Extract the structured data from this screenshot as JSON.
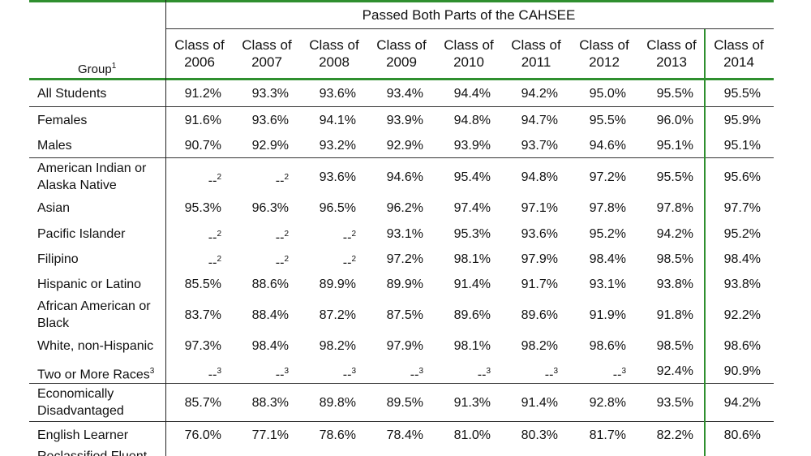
{
  "table": {
    "super_header": "Passed Both Parts of the CAHSEE",
    "group_header": "Group",
    "group_header_note": "1",
    "columns": [
      {
        "line1": "Class of",
        "line2": "2006"
      },
      {
        "line1": "Class of",
        "line2": "2007"
      },
      {
        "line1": "Class of",
        "line2": "2008"
      },
      {
        "line1": "Class of",
        "line2": "2009"
      },
      {
        "line1": "Class of",
        "line2": "2010"
      },
      {
        "line1": "Class of",
        "line2": "2011"
      },
      {
        "line1": "Class of",
        "line2": "2012"
      },
      {
        "line1": "Class of",
        "line2": "2013"
      },
      {
        "line1": "Class of",
        "line2": "2014"
      }
    ],
    "rows": [
      {
        "group": "All Students",
        "values": [
          "91.2%",
          "93.3%",
          "93.6%",
          "93.4%",
          "94.4%",
          "94.2%",
          "95.0%",
          "95.5%",
          "95.5%"
        ]
      },
      {
        "group": "Females",
        "values": [
          "91.6%",
          "93.6%",
          "94.1%",
          "93.9%",
          "94.8%",
          "94.7%",
          "95.5%",
          "96.0%",
          "95.9%"
        ]
      },
      {
        "group": "Males",
        "values": [
          "90.7%",
          "92.9%",
          "93.2%",
          "92.9%",
          "93.9%",
          "93.7%",
          "94.6%",
          "95.1%",
          "95.1%"
        ]
      },
      {
        "group": "American Indian or Alaska Native",
        "values": [
          "--2",
          "--2",
          "93.6%",
          "94.6%",
          "95.4%",
          "94.8%",
          "97.2%",
          "95.5%",
          "95.6%"
        ]
      },
      {
        "group": "Asian",
        "values": [
          "95.3%",
          "96.3%",
          "96.5%",
          "96.2%",
          "97.4%",
          "97.1%",
          "97.8%",
          "97.8%",
          "97.7%"
        ]
      },
      {
        "group": "Pacific Islander",
        "values": [
          "--2",
          "--2",
          "--2",
          "93.1%",
          "95.3%",
          "93.6%",
          "95.2%",
          "94.2%",
          "95.2%"
        ]
      },
      {
        "group": "Filipino",
        "values": [
          "--2",
          "--2",
          "--2",
          "97.2%",
          "98.1%",
          "97.9%",
          "98.4%",
          "98.5%",
          "98.4%"
        ]
      },
      {
        "group": "Hispanic or Latino",
        "values": [
          "85.5%",
          "88.6%",
          "89.9%",
          "89.9%",
          "91.4%",
          "91.7%",
          "93.1%",
          "93.8%",
          "93.8%"
        ]
      },
      {
        "group": "African American or Black",
        "values": [
          "83.7%",
          "88.4%",
          "87.2%",
          "87.5%",
          "89.6%",
          "89.6%",
          "91.9%",
          "91.8%",
          "92.2%"
        ]
      },
      {
        "group": "White, non-Hispanic",
        "values": [
          "97.3%",
          "98.4%",
          "98.2%",
          "97.9%",
          "98.1%",
          "98.2%",
          "98.6%",
          "98.5%",
          "98.6%"
        ]
      },
      {
        "group": "Two or More Races",
        "group_note": "3",
        "values": [
          "--3",
          "--3",
          "--3",
          "--3",
          "--3",
          "--3",
          "--3",
          "92.4%",
          "90.9%"
        ]
      },
      {
        "group": "Economically Disadvantaged",
        "values": [
          "85.7%",
          "88.3%",
          "89.8%",
          "89.5%",
          "91.3%",
          "91.4%",
          "92.8%",
          "93.5%",
          "94.2%"
        ]
      },
      {
        "group": "English Learner",
        "values": [
          "76.0%",
          "77.1%",
          "78.6%",
          "78.4%",
          "81.0%",
          "80.3%",
          "81.7%",
          "82.2%",
          "80.6%"
        ]
      },
      {
        "group": "Reclassified Fluent",
        "values": [
          "",
          "",
          "",
          "",
          "",
          "",
          "",
          "",
          ""
        ]
      }
    ]
  },
  "colors": {
    "rule_green": "#2f8f2f",
    "text": "#111111"
  }
}
